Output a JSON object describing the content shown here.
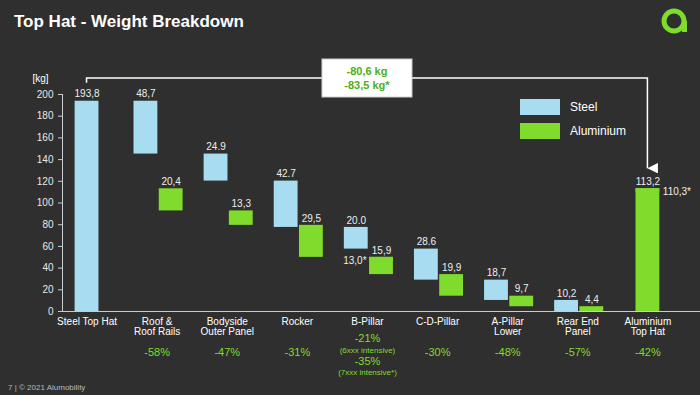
{
  "chart_data": {
    "type": "waterfall",
    "title": "Top Hat - Weight Breakdown",
    "y_label": "[kg]",
    "categories": [
      "Steel Top Hat",
      "Roof &\nRoof Rails",
      "Bodyside\nOuter Panel",
      "Rocker",
      "B-Pillar",
      "C-D-Pillar",
      "A-Pillar\nLower",
      "Rear End\nPanel",
      "Aluminium\nTop Hat"
    ],
    "series": [
      {
        "name": "Steel",
        "color": "#a8dcf0",
        "values": [
          193.8,
          48.7,
          24.9,
          42.7,
          20.0,
          28.6,
          18.7,
          10.2,
          null
        ],
        "value_labels": [
          "193,8",
          "48,7",
          "24.9",
          "42.7",
          "20.0",
          "28.6",
          "18,7",
          "10,2",
          null
        ]
      },
      {
        "name": "Aluminium",
        "color": "#80dc2c",
        "values": [
          null,
          20.4,
          13.3,
          29.5,
          15.9,
          19.9,
          9.7,
          4.4,
          113.2
        ],
        "value_labels": [
          null,
          "20,4",
          "13,3",
          "29,5",
          "15,9",
          "19,9",
          "9,7",
          "4,4",
          "113,2"
        ],
        "alt_values": [
          null,
          null,
          null,
          null,
          13.0,
          null,
          null,
          null,
          110.3
        ],
        "alt_value_labels": [
          null,
          null,
          null,
          null,
          "13,0*",
          null,
          null,
          null,
          "110,3*"
        ]
      }
    ],
    "percent_change": [
      null,
      -58,
      -47,
      -31,
      -21,
      -30,
      -48,
      -57,
      -42
    ],
    "percent_labels": [
      null,
      "-58%",
      "-47%",
      "-31%",
      "-21%",
      "-30%",
      "-48%",
      "-57%",
      "-42%"
    ],
    "percent_notes": [
      null,
      null,
      null,
      null,
      "(6xxx intensive)",
      null,
      null,
      null,
      null
    ],
    "alt_percent_change": [
      null,
      null,
      null,
      null,
      -35,
      null,
      null,
      null,
      null
    ],
    "alt_percent_labels": [
      null,
      null,
      null,
      null,
      "-35%",
      null,
      null,
      null,
      null
    ],
    "alt_percent_notes": [
      null,
      null,
      null,
      null,
      "(7xxx intensive*)",
      null,
      null,
      null,
      null
    ],
    "annotations": [
      {
        "value": -80.6,
        "label": "-80,6 kg"
      },
      {
        "value": -83.5,
        "label": "-83,5 kg*"
      }
    ],
    "footer": "7 | © 2021 Alumobility",
    "ylim": [
      0,
      200
    ],
    "yticks": [
      0,
      20,
      40,
      60,
      80,
      100,
      120,
      140,
      160,
      180,
      200
    ],
    "grid": false,
    "legend": "top-right",
    "data_labels": true
  }
}
